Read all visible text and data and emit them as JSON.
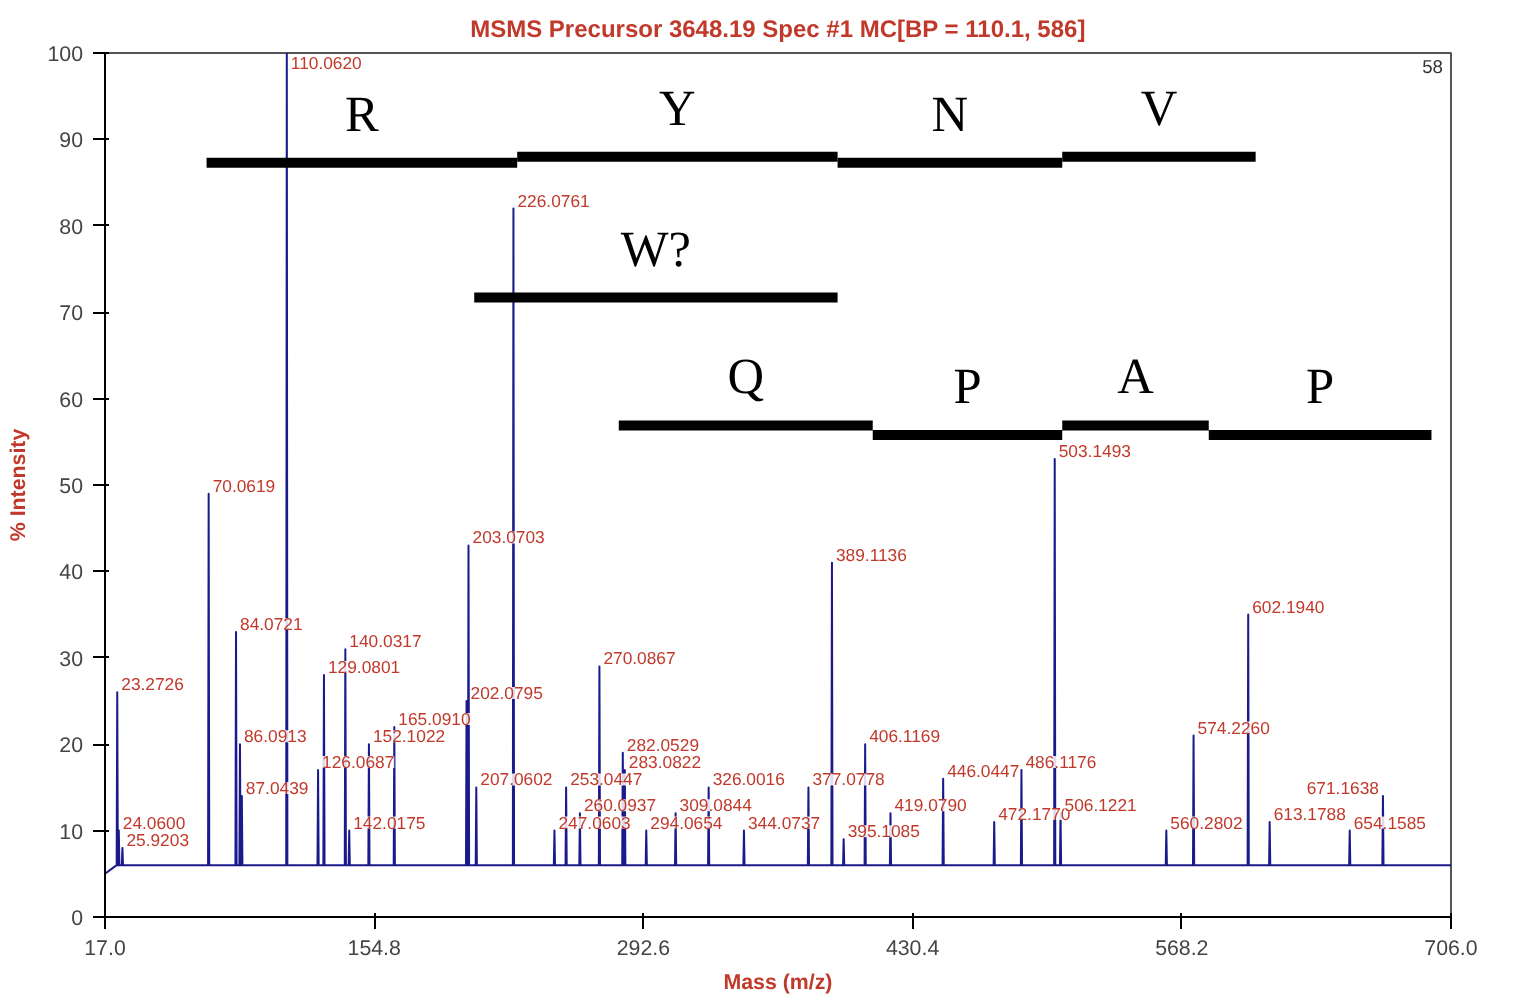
{
  "chart_data": {
    "type": "line",
    "title": "MSMS Precursor 3648.19 Spec #1 MC[BP = 110.1, 586]",
    "xlabel": "Mass (m/z)",
    "ylabel": "% Intensity",
    "xlim": [
      17.0,
      706.0
    ],
    "xticks": [
      {
        "value": 17.0,
        "label": "17.0"
      },
      {
        "value": 154.8,
        "label": "154.8"
      },
      {
        "value": 292.6,
        "label": "292.6"
      },
      {
        "value": 430.4,
        "label": "430.4"
      },
      {
        "value": 568.2,
        "label": "568.2"
      },
      {
        "value": 706.0,
        "label": "706.0"
      }
    ],
    "ylim": [
      0,
      100
    ],
    "yticks": [
      0,
      10,
      20,
      30,
      40,
      50,
      60,
      70,
      80,
      90,
      100
    ],
    "grid": false,
    "legend": false,
    "series": [
      {
        "color": "#1a1a8c",
        "x": [
          17,
          22.97,
          23.2726,
          23.57,
          23.76,
          24.06,
          24.36,
          25.62,
          25.9203,
          26.22,
          69.76,
          70.0619,
          70.36,
          83.77,
          84.0721,
          84.37,
          85.79,
          86.0913,
          86.39,
          86.74,
          87.0439,
          87.34,
          109.76,
          110.062,
          110.36,
          125.77,
          126.0687,
          126.37,
          128.78,
          129.0801,
          129.38,
          139.73,
          140.0317,
          140.33,
          141.72,
          142.0175,
          142.32,
          151.8,
          152.1022,
          152.4,
          164.79,
          165.091,
          165.39,
          201.78,
          202.0795,
          202.38,
          202.77,
          203.0703,
          203.37,
          206.76,
          207.0602,
          207.36,
          225.78,
          226.0761,
          226.38,
          246.76,
          247.0603,
          247.36,
          252.74,
          253.0447,
          253.34,
          259.79,
          260.0937,
          260.39,
          269.79,
          270.0867,
          270.39,
          281.75,
          282.0529,
          282.35,
          282.78,
          283.0822,
          283.38,
          293.77,
          294.0654,
          294.37,
          308.78,
          309.0844,
          309.38,
          325.7,
          326.0016,
          326.3,
          343.77,
          344.0737,
          344.37,
          376.78,
          377.0778,
          377.38,
          388.81,
          389.1136,
          389.41,
          394.81,
          395.1085,
          395.41,
          405.82,
          406.1169,
          406.42,
          418.78,
          419.079,
          419.38,
          445.74,
          446.0447,
          446.34,
          471.88,
          472.177,
          472.48,
          485.82,
          486.1176,
          486.42,
          502.85,
          503.1493,
          503.45,
          505.82,
          506.1221,
          506.42,
          559.98,
          560.2802,
          560.58,
          573.93,
          574.226,
          574.53,
          601.89,
          602.194,
          602.49,
          612.88,
          613.1788,
          613.48,
          653.86,
          654.1585,
          654.46,
          670.86,
          671.1638,
          671.46,
          706
        ],
        "values": [
          5,
          6,
          26,
          6,
          6,
          10,
          6,
          6,
          8,
          6,
          6,
          49,
          6,
          6,
          33,
          6,
          6,
          20,
          6,
          6,
          14,
          6,
          6,
          100,
          6,
          6,
          17,
          6,
          6,
          28,
          6,
          6,
          31,
          6,
          6,
          10,
          6,
          6,
          20,
          6,
          6,
          22,
          6,
          6,
          25,
          6,
          6,
          43,
          6,
          6,
          15,
          6,
          6,
          82,
          6,
          6,
          10,
          6,
          6,
          15,
          6,
          6,
          12,
          6,
          6,
          29,
          6,
          6,
          19,
          6,
          6,
          17,
          6,
          6,
          10,
          6,
          6,
          12,
          6,
          6,
          15,
          6,
          6,
          10,
          6,
          6,
          15,
          6,
          6,
          41,
          6,
          6,
          9,
          6,
          6,
          20,
          6,
          6,
          12,
          6,
          6,
          16,
          6,
          6,
          11,
          6,
          6,
          17,
          6,
          6,
          53,
          6,
          6,
          12,
          6,
          6,
          10,
          6,
          6,
          21,
          6,
          6,
          35,
          6,
          6,
          11,
          6,
          6,
          10,
          6,
          6,
          14,
          6,
          6
        ]
      },
      {
        "name": "R",
        "color": "#000000",
        "x": [
          69,
          228
        ],
        "values": [
          87.3,
          87.3
        ]
      },
      {
        "name": "Y",
        "color": "#000000",
        "x": [
          228,
          392
        ],
        "values": [
          88.0,
          88.0
        ]
      },
      {
        "name": "N",
        "color": "#000000",
        "x": [
          392,
          507
        ],
        "values": [
          87.3,
          87.3
        ]
      },
      {
        "name": "V",
        "color": "#000000",
        "x": [
          507,
          606
        ],
        "values": [
          88.0,
          88.0
        ]
      },
      {
        "name": "W?",
        "color": "#000000",
        "x": [
          206,
          392
        ],
        "values": [
          71.7,
          71.7
        ]
      },
      {
        "name": "Q",
        "color": "#000000",
        "x": [
          280,
          410
        ],
        "values": [
          56.9,
          56.9
        ]
      },
      {
        "name": "P",
        "color": "#000000",
        "x": [
          410,
          507
        ],
        "values": [
          55.8,
          55.8
        ]
      },
      {
        "name": "A",
        "color": "#000000",
        "x": [
          507,
          582
        ],
        "values": [
          56.9,
          56.9
        ]
      },
      {
        "name": "P",
        "color": "#000000",
        "x": [
          582,
          696
        ],
        "values": [
          55.8,
          55.8
        ]
      }
    ],
    "annotations": [
      "58",
      {
        "text": "23.2726",
        "x": 23.2726,
        "y": 26
      },
      {
        "text": "24.0600",
        "x": 24.06,
        "y": 10
      },
      {
        "text": "25.9203",
        "x": 25.9203,
        "y": 8
      },
      {
        "text": "70.0619",
        "x": 70.0619,
        "y": 49
      },
      {
        "text": "84.0721",
        "x": 84.0721,
        "y": 33
      },
      {
        "text": "86.0913",
        "x": 86.0913,
        "y": 20
      },
      {
        "text": "87.0439",
        "x": 87.0439,
        "y": 14
      },
      {
        "text": "110.0620",
        "x": 110.062,
        "y": 100
      },
      {
        "text": "126.0687",
        "x": 126.0687,
        "y": 17
      },
      {
        "text": "129.0801",
        "x": 129.0801,
        "y": 28
      },
      {
        "text": "140.0317",
        "x": 140.0317,
        "y": 31
      },
      {
        "text": "142.0175",
        "x": 142.0175,
        "y": 10
      },
      {
        "text": "152.1022",
        "x": 152.1022,
        "y": 20
      },
      {
        "text": "165.0910",
        "x": 165.091,
        "y": 22
      },
      {
        "text": "202.0795",
        "x": 202.0795,
        "y": 25
      },
      {
        "text": "203.0703",
        "x": 203.0703,
        "y": 43
      },
      {
        "text": "207.0602",
        "x": 207.0602,
        "y": 15
      },
      {
        "text": "226.0761",
        "x": 226.0761,
        "y": 82
      },
      {
        "text": "247.0603",
        "x": 247.0603,
        "y": 10
      },
      {
        "text": "253.0447",
        "x": 253.0447,
        "y": 15
      },
      {
        "text": "260.0937",
        "x": 260.0937,
        "y": 12
      },
      {
        "text": "270.0867",
        "x": 270.0867,
        "y": 29
      },
      {
        "text": "282.0529",
        "x": 282.0529,
        "y": 19
      },
      {
        "text": "283.0822",
        "x": 283.0822,
        "y": 17
      },
      {
        "text": "294.0654",
        "x": 294.0654,
        "y": 10
      },
      {
        "text": "309.0844",
        "x": 309.0844,
        "y": 12
      },
      {
        "text": "326.0016",
        "x": 326.0016,
        "y": 15
      },
      {
        "text": "344.0737",
        "x": 344.0737,
        "y": 10
      },
      {
        "text": "377.0778",
        "x": 377.0778,
        "y": 15
      },
      {
        "text": "389.1136",
        "x": 389.1136,
        "y": 41
      },
      {
        "text": "395.1085",
        "x": 395.1085,
        "y": 9
      },
      {
        "text": "406.1169",
        "x": 406.1169,
        "y": 20
      },
      {
        "text": "419.0790",
        "x": 419.079,
        "y": 12
      },
      {
        "text": "446.0447",
        "x": 446.0447,
        "y": 16
      },
      {
        "text": "472.1770",
        "x": 472.177,
        "y": 11
      },
      {
        "text": "486.1176",
        "x": 486.1176,
        "y": 17
      },
      {
        "text": "503.1493",
        "x": 503.1493,
        "y": 53
      },
      {
        "text": "506.1221",
        "x": 506.1221,
        "y": 12
      },
      {
        "text": "560.2802",
        "x": 560.2802,
        "y": 10
      },
      {
        "text": "574.2260",
        "x": 574.226,
        "y": 21
      },
      {
        "text": "602.1940",
        "x": 602.194,
        "y": 35
      },
      {
        "text": "613.1788",
        "x": 613.1788,
        "y": 11
      },
      {
        "text": "654.1585",
        "x": 654.1585,
        "y": 10
      },
      {
        "text": "671.1638",
        "x": 671.1638,
        "y": 14
      }
    ]
  }
}
